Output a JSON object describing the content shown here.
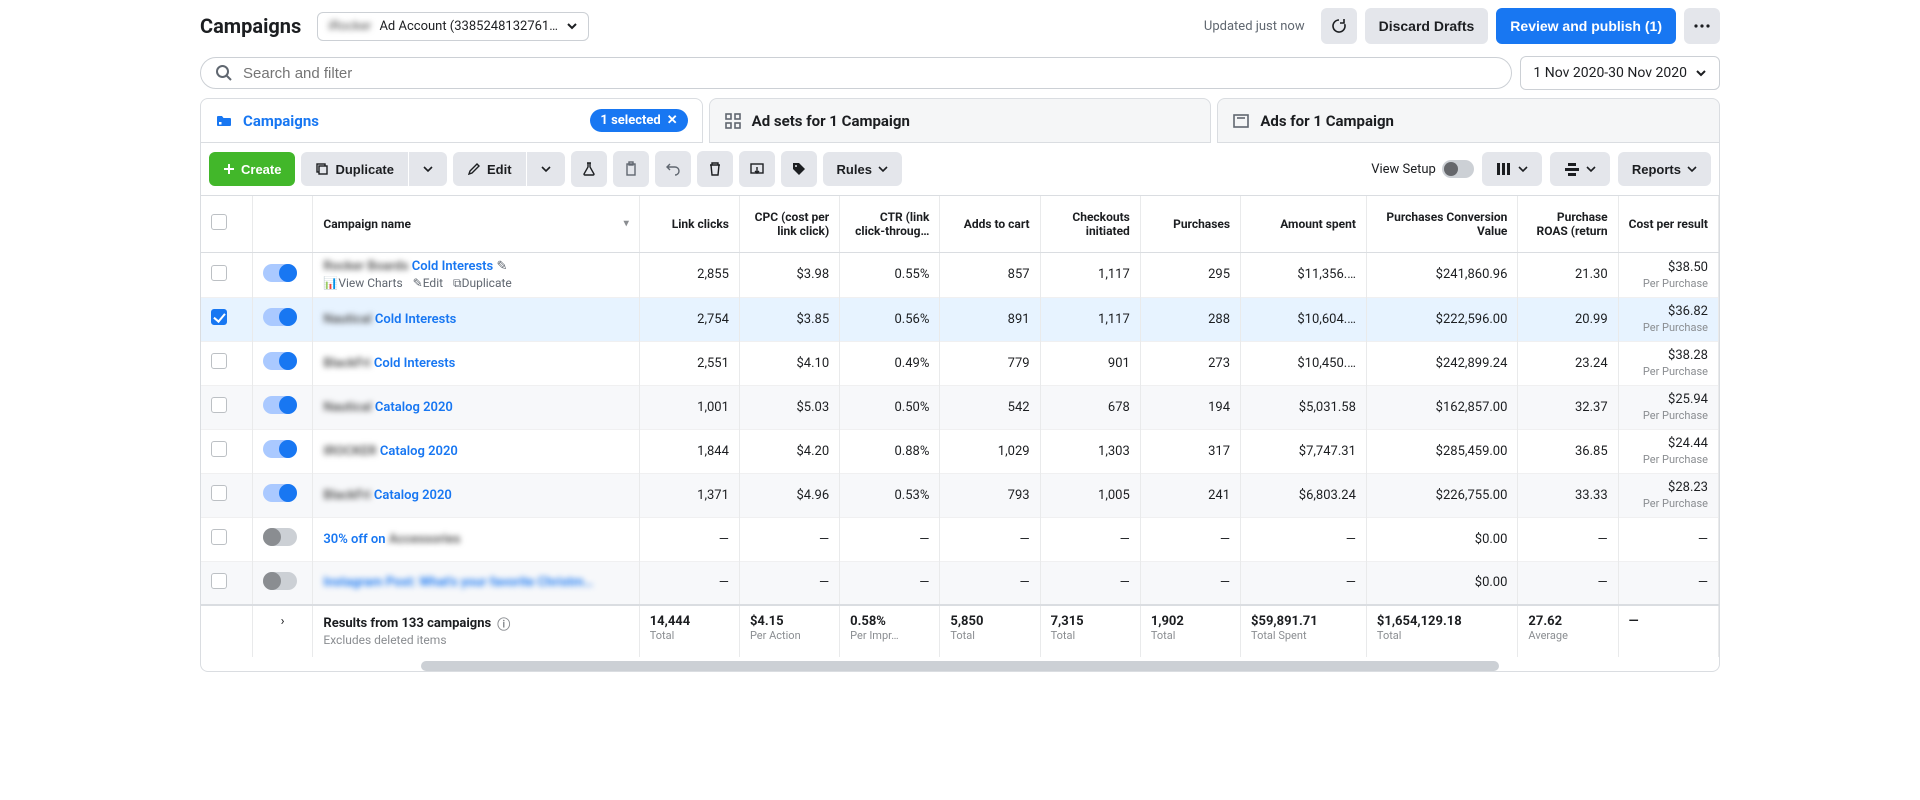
{
  "header": {
    "title": "Campaigns",
    "account_label": "Ad Account (3385248132761…",
    "updated": "Updated just now",
    "discard": "Discard Drafts",
    "review": "Review and publish (1)"
  },
  "search": {
    "placeholder": "Search and filter",
    "date_range": "1 Nov 2020-30 Nov 2020"
  },
  "tabs": {
    "campaigns": "Campaigns",
    "campaigns_pill": "1 selected",
    "adsets": "Ad sets for 1 Campaign",
    "ads": "Ads for 1 Campaign"
  },
  "toolbar": {
    "create": "Create",
    "duplicate": "Duplicate",
    "edit": "Edit",
    "rules": "Rules",
    "view_setup": "View Setup",
    "reports": "Reports"
  },
  "columns": {
    "name": "Campaign name",
    "link_clicks": "Link clicks",
    "cpc": "CPC (cost per link click)",
    "ctr": "CTR (link click-throug…",
    "atc": "Adds to cart",
    "checkouts": "Checkouts initiated",
    "purchases": "Purchases",
    "spent": "Amount spent",
    "conv_value": "Purchases Conversion Value",
    "roas": "Purchase ROAS (return",
    "cpp": "Cost per result"
  },
  "rows": [
    {
      "checked": false,
      "on": true,
      "hover": true,
      "name_blur": "Rocker Boards",
      "name": "Cold Interests",
      "link_clicks": "2,855",
      "cpc": "$3.98",
      "ctr": "0.55%",
      "atc": "857",
      "checkouts": "1,117",
      "purchases": "295",
      "spent": "$11,356.…",
      "conv_value": "$241,860.96",
      "roas": "21.30",
      "cpp": "$38.50",
      "per": "Per Purchase"
    },
    {
      "checked": true,
      "on": true,
      "name_blur": "Nautical",
      "name": "Cold Interests",
      "link_clicks": "2,754",
      "cpc": "$3.85",
      "ctr": "0.56%",
      "atc": "891",
      "checkouts": "1,117",
      "purchases": "288",
      "spent": "$10,604.…",
      "conv_value": "$222,596.00",
      "roas": "20.99",
      "cpp": "$36.82",
      "per": "Per Purchase"
    },
    {
      "checked": false,
      "on": true,
      "name_blur": "BlackFri",
      "name": "Cold Interests",
      "link_clicks": "2,551",
      "cpc": "$4.10",
      "ctr": "0.49%",
      "atc": "779",
      "checkouts": "901",
      "purchases": "273",
      "spent": "$10,450.…",
      "conv_value": "$242,899.24",
      "roas": "23.24",
      "cpp": "$38.28",
      "per": "Per Purchase"
    },
    {
      "checked": false,
      "on": true,
      "name_blur": "Nautical",
      "name": "Catalog 2020",
      "link_clicks": "1,001",
      "cpc": "$5.03",
      "ctr": "0.50%",
      "atc": "542",
      "checkouts": "678",
      "purchases": "194",
      "spent": "$5,031.58",
      "conv_value": "$162,857.00",
      "roas": "32.37",
      "cpp": "$25.94",
      "per": "Per Purchase"
    },
    {
      "checked": false,
      "on": true,
      "name_blur": "IROCKER",
      "name": "Catalog 2020",
      "link_clicks": "1,844",
      "cpc": "$4.20",
      "ctr": "0.88%",
      "atc": "1,029",
      "checkouts": "1,303",
      "purchases": "317",
      "spent": "$7,747.31",
      "conv_value": "$285,459.00",
      "roas": "36.85",
      "cpp": "$24.44",
      "per": "Per Purchase"
    },
    {
      "checked": false,
      "on": true,
      "name_blur": "BlackFri",
      "name": "Catalog 2020",
      "link_clicks": "1,371",
      "cpc": "$4.96",
      "ctr": "0.53%",
      "atc": "793",
      "checkouts": "1,005",
      "purchases": "241",
      "spent": "$6,803.24",
      "conv_value": "$226,755.00",
      "roas": "33.33",
      "cpp": "$28.23",
      "per": "Per Purchase"
    },
    {
      "checked": false,
      "on": false,
      "name": "30% off on",
      "name_blur_after": "Accessories",
      "link_clicks": "—",
      "cpc": "—",
      "ctr": "—",
      "atc": "—",
      "checkouts": "—",
      "purchases": "—",
      "spent": "—",
      "conv_value": "$0.00",
      "roas": "—",
      "cpp": "—"
    },
    {
      "checked": false,
      "on": false,
      "all_blur": true,
      "name_blur": "Instagram Post: What's your favorite Christm…",
      "link_clicks": "—",
      "cpc": "—",
      "ctr": "—",
      "atc": "—",
      "checkouts": "—",
      "purchases": "—",
      "spent": "—",
      "conv_value": "$0.00",
      "roas": "—",
      "cpp": "—"
    }
  ],
  "row_actions": {
    "view_charts": "View Charts",
    "edit": "Edit",
    "duplicate": "Duplicate"
  },
  "totals": {
    "label": "Results from 133 campaigns",
    "sub": "Excludes deleted items",
    "link_clicks": "14,444",
    "link_clicks_sub": "Total",
    "cpc": "$4.15",
    "cpc_sub": "Per Action",
    "ctr": "0.58%",
    "ctr_sub": "Per Impr…",
    "atc": "5,850",
    "atc_sub": "Total",
    "checkouts": "7,315",
    "checkouts_sub": "Total",
    "purchases": "1,902",
    "purchases_sub": "Total",
    "spent": "$59,891.71",
    "spent_sub": "Total Spent",
    "conv_value": "$1,654,129.18",
    "conv_value_sub": "Total",
    "roas": "27.62",
    "roas_sub": "Average",
    "cpp": "—"
  }
}
